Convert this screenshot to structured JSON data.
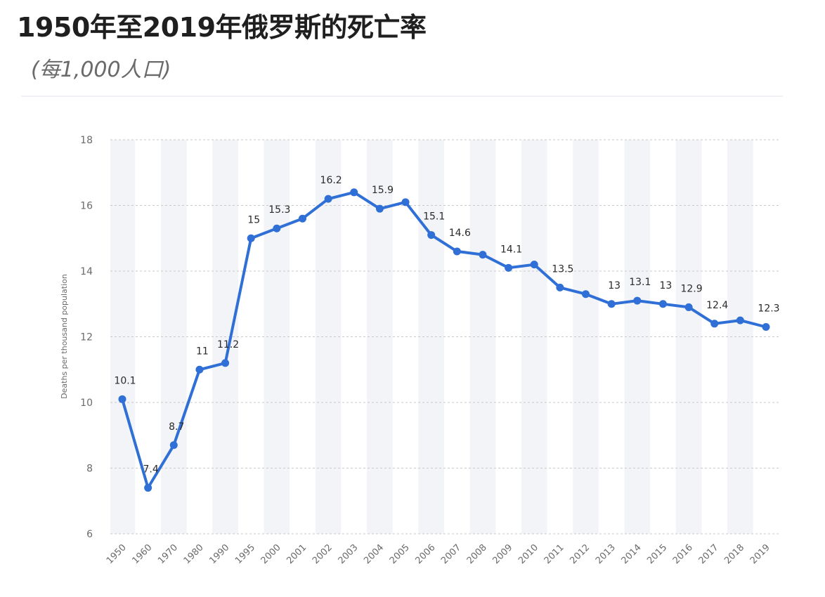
{
  "chart_data": {
    "type": "line",
    "title": "1950年至2019年俄罗斯的死亡率",
    "subtitle": "(每1,000人口)",
    "xlabel": "",
    "ylabel": "Deaths per thousand population",
    "ylim": [
      6,
      18
    ],
    "yticks": [
      6,
      8,
      10,
      12,
      14,
      16,
      18
    ],
    "grid": true,
    "categories": [
      "1950",
      "1960",
      "1970",
      "1980",
      "1990",
      "1995",
      "2000",
      "2001",
      "2002",
      "2003",
      "2004",
      "2005",
      "2006",
      "2007",
      "2008",
      "2009",
      "2010",
      "2011",
      "2012",
      "2013",
      "2014",
      "2015",
      "2016",
      "2017",
      "2018",
      "2019"
    ],
    "series": [
      {
        "values": [
          10.1,
          7.4,
          8.7,
          11,
          11.2,
          15,
          15.3,
          15.6,
          16.2,
          16.4,
          15.9,
          16.1,
          15.1,
          14.6,
          14.5,
          14.1,
          14.2,
          13.5,
          13.3,
          13,
          13.1,
          13,
          12.9,
          12.4,
          12.5,
          12.3
        ],
        "data_labels": [
          "10.1",
          "7.4",
          "8.7",
          "11",
          "11.2",
          "15",
          "15.3",
          "",
          "16.2",
          "",
          "15.9",
          "",
          "15.1",
          "14.6",
          "",
          "14.1",
          "",
          "13.5",
          "",
          "13",
          "13.1",
          "13",
          "12.9",
          "12.4",
          "",
          "12.3"
        ]
      }
    ],
    "line_color": "#2f6fd6",
    "band_color": "#f3f4f7"
  }
}
